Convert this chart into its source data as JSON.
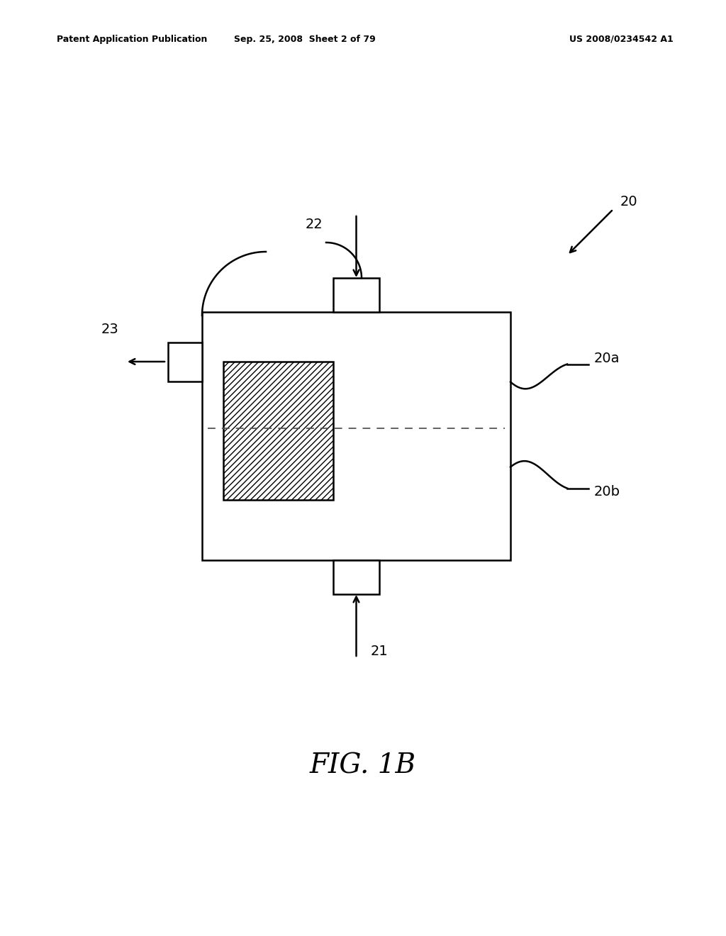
{
  "bg_color": "#ffffff",
  "header_left": "Patent Application Publication",
  "header_mid": "Sep. 25, 2008  Sheet 2 of 79",
  "header_right": "US 2008/0234542 A1",
  "fig_label": "FIG. 1B",
  "label_20": "20",
  "label_20a": "20a",
  "label_20b": "20b",
  "label_21": "21",
  "label_22": "22",
  "label_23": "23",
  "line_color": "#000000",
  "line_width": 1.8
}
